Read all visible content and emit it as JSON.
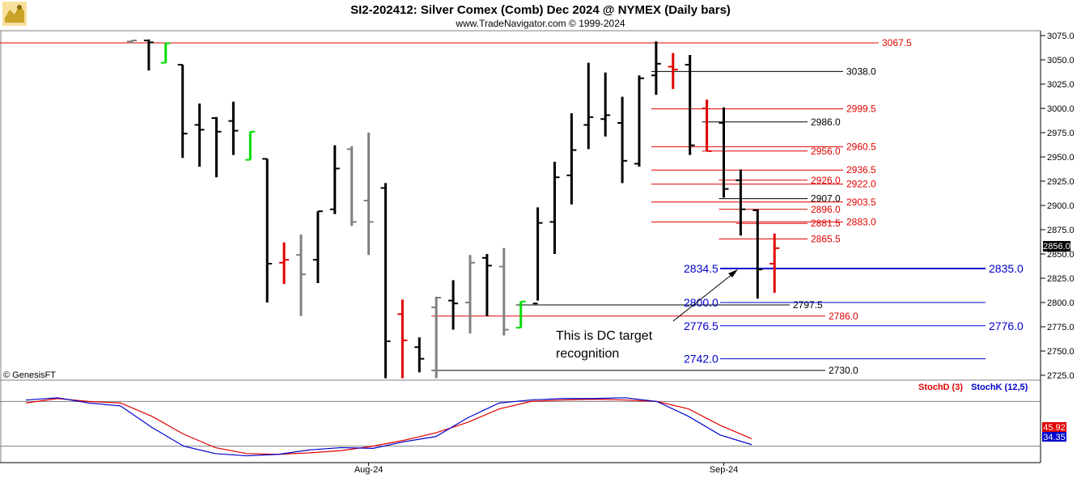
{
  "header": {
    "title": "SI2-202412:  Silver Comex (Comb) Dec 2024 @ NYMEX  (Daily bars)",
    "subtitle": "www.TradeNavigator.com © 1999-2024"
  },
  "logo_icon": "trading-bull-icon",
  "watermark": "© GenesisFT",
  "price_badge": "2856.0",
  "annotation": [
    "This is DC target",
    "recognition"
  ],
  "colors": {
    "up": "#000000",
    "gray": "#808080",
    "red": "#e00000",
    "green": "#00dd00",
    "blue": "#0000cc",
    "stochD": "#e00000",
    "stochK": "#0000cc"
  },
  "chart_data": [
    {
      "type": "ohlc",
      "title": "SI2-202412:  Silver Comex (Comb) Dec 2024 @ NYMEX  (Daily bars)",
      "ylim": [
        2720,
        3080
      ],
      "yticks": [
        "3075.0",
        "3050.0",
        "3025.0",
        "3000.0",
        "2975.0",
        "2950.0",
        "2925.0",
        "2900.0",
        "2875.0",
        "2850.0",
        "2825.0",
        "2800.0",
        "2775.0",
        "2750.0",
        "2725.0"
      ],
      "xticks": [
        {
          "label": "Aug-24",
          "bar": 14
        },
        {
          "label": "Sep-24",
          "bar": 35
        }
      ],
      "bars": [
        {
          "x": 0,
          "h": 3070,
          "l": 3067,
          "o": 3069,
          "c": 3070,
          "col": "gray"
        },
        {
          "x": 1,
          "h": 3071,
          "l": 3039,
          "o": 3070,
          "c": 3068,
          "col": "black"
        },
        {
          "x": 2,
          "h": 3067,
          "l": 3047,
          "o": 3047,
          "c": 3067,
          "col": "green"
        },
        {
          "x": 3,
          "h": 3045,
          "l": 2949,
          "o": 3045,
          "c": 2974,
          "col": "black"
        },
        {
          "x": 4,
          "h": 3005,
          "l": 2940,
          "o": 2983,
          "c": 2978,
          "col": "black"
        },
        {
          "x": 5,
          "h": 2991,
          "l": 2929,
          "o": 2990,
          "c": 2976,
          "col": "black"
        },
        {
          "x": 6,
          "h": 3007,
          "l": 2952,
          "o": 2987,
          "c": 2977,
          "col": "black"
        },
        {
          "x": 7,
          "h": 2976,
          "l": 2947,
          "o": 2947,
          "c": 2976,
          "col": "green"
        },
        {
          "x": 8,
          "h": 2948,
          "l": 2800,
          "o": 2948,
          "c": 2840,
          "col": "black"
        },
        {
          "x": 9,
          "h": 2862,
          "l": 2819,
          "o": 2841,
          "c": 2844,
          "col": "red"
        },
        {
          "x": 10,
          "h": 2870,
          "l": 2786,
          "o": 2849,
          "c": 2829,
          "col": "gray"
        },
        {
          "x": 11,
          "h": 2894,
          "l": 2820,
          "o": 2844,
          "c": 2894,
          "col": "black"
        },
        {
          "x": 12,
          "h": 2962,
          "l": 2891,
          "o": 2896,
          "c": 2938,
          "col": "black"
        },
        {
          "x": 13,
          "h": 2961,
          "l": 2879,
          "o": 2958,
          "c": 2883,
          "col": "gray"
        },
        {
          "x": 14,
          "h": 2975,
          "l": 2849,
          "o": 2905,
          "c": 2883,
          "col": "gray"
        },
        {
          "x": 15,
          "h": 2923,
          "l": 2722,
          "o": 2918,
          "c": 2760,
          "col": "black"
        },
        {
          "x": 16,
          "h": 2803,
          "l": 2722,
          "o": 2788,
          "c": 2761,
          "col": "red"
        },
        {
          "x": 17,
          "h": 2764,
          "l": 2728,
          "o": 2754,
          "c": 2742,
          "col": "black"
        },
        {
          "x": 18,
          "h": 2806,
          "l": 2722,
          "o": 2795,
          "c": 2805,
          "col": "gray"
        },
        {
          "x": 19,
          "h": 2823,
          "l": 2772,
          "o": 2802,
          "c": 2799,
          "col": "black"
        },
        {
          "x": 20,
          "h": 2849,
          "l": 2768,
          "o": 2800,
          "c": 2841,
          "col": "gray"
        },
        {
          "x": 21,
          "h": 2850,
          "l": 2786,
          "o": 2846,
          "c": 2838,
          "col": "black"
        },
        {
          "x": 22,
          "h": 2856,
          "l": 2766,
          "o": 2837,
          "c": 2772,
          "col": "gray"
        },
        {
          "x": 23,
          "h": 2801,
          "l": 2774,
          "o": 2774,
          "c": 2801,
          "col": "green"
        },
        {
          "x": 24,
          "h": 2898,
          "l": 2802,
          "o": 2799,
          "c": 2882,
          "col": "black"
        },
        {
          "x": 25,
          "h": 2945,
          "l": 2850,
          "o": 2883,
          "c": 2929,
          "col": "black"
        },
        {
          "x": 26,
          "h": 2995,
          "l": 2901,
          "o": 2931,
          "c": 2957,
          "col": "black"
        },
        {
          "x": 27,
          "h": 3047,
          "l": 2958,
          "o": 2983,
          "c": 2991,
          "col": "black"
        },
        {
          "x": 28,
          "h": 3037,
          "l": 2971,
          "o": 2989,
          "c": 2993,
          "col": "black"
        },
        {
          "x": 29,
          "h": 3012,
          "l": 2923,
          "o": 2985,
          "c": 2946,
          "col": "black"
        },
        {
          "x": 30,
          "h": 3034,
          "l": 2940,
          "o": 2943,
          "c": 3031,
          "col": "black"
        },
        {
          "x": 31,
          "h": 3069,
          "l": 3014,
          "o": 3034,
          "c": 3046,
          "col": "black"
        },
        {
          "x": 32,
          "h": 3057,
          "l": 3020,
          "o": 3043,
          "c": 3040,
          "col": "red"
        },
        {
          "x": 33,
          "h": 3055,
          "l": 2952,
          "o": 3045,
          "c": 2962,
          "col": "black"
        },
        {
          "x": 34,
          "h": 3009,
          "l": 2956,
          "o": 3000,
          "c": 2956,
          "col": "red"
        },
        {
          "x": 35,
          "h": 3001,
          "l": 2908,
          "o": 2985,
          "c": 2917,
          "col": "black"
        },
        {
          "x": 36,
          "h": 2937,
          "l": 2869,
          "o": 2926,
          "c": 2896,
          "col": "black"
        },
        {
          "x": 37,
          "h": 2896,
          "l": 2804,
          "o": 2895,
          "c": 2834,
          "col": "black"
        },
        {
          "x": 38,
          "h": 2871,
          "l": 2810,
          "o": 2840,
          "c": 2856,
          "col": "red"
        }
      ],
      "levels": [
        {
          "value": 3067.5,
          "label": "3067.5",
          "color": "red",
          "from": 0,
          "size": "small"
        },
        {
          "value": 3038.0,
          "label": "3038.0",
          "color": "black",
          "from": 31,
          "size": "small"
        },
        {
          "value": 2999.5,
          "label": "2999.5",
          "color": "red",
          "from": 31,
          "size": "small"
        },
        {
          "value": 2986.0,
          "label": "2986.0",
          "color": "black",
          "from": 34,
          "size": "small"
        },
        {
          "value": 2960.5,
          "label": "2960.5",
          "color": "red",
          "from": 31,
          "size": "small"
        },
        {
          "value": 2956.0,
          "label": "2956.0",
          "color": "red",
          "from": 34,
          "size": "small"
        },
        {
          "value": 2936.5,
          "label": "2936.5",
          "color": "red",
          "from": 31,
          "size": "small"
        },
        {
          "value": 2926.0,
          "label": "2926.0",
          "color": "red",
          "from": 35,
          "size": "small"
        },
        {
          "value": 2922.0,
          "label": "2922.0",
          "color": "red",
          "from": 31,
          "size": "small"
        },
        {
          "value": 2907.0,
          "label": "2907.0",
          "color": "black",
          "from": 35,
          "size": "small"
        },
        {
          "value": 2903.5,
          "label": "2903.5",
          "color": "red",
          "from": 31,
          "size": "small"
        },
        {
          "value": 2896.0,
          "label": "2896.0",
          "color": "red",
          "from": 35,
          "size": "small"
        },
        {
          "value": 2883.0,
          "label": "2883.0",
          "color": "red",
          "from": 31,
          "size": "small"
        },
        {
          "value": 2881.5,
          "label": "2881.5",
          "color": "red",
          "from": 36,
          "size": "small"
        },
        {
          "value": 2865.5,
          "label": "2865.5",
          "color": "red",
          "from": 35,
          "size": "small"
        },
        {
          "value": 2797.5,
          "label": "2797.5",
          "color": "black",
          "from": 23,
          "size": "small"
        },
        {
          "value": 2786.0,
          "label": "2786.0",
          "color": "red",
          "from": 18,
          "size": "small"
        },
        {
          "value": 2730.0,
          "label": "2730.0",
          "color": "black",
          "from": 18,
          "size": "small"
        }
      ],
      "target_levels": [
        {
          "value": 2835.0,
          "label": "2834.5",
          "right_label": "2835.0",
          "color": "blue",
          "bold": true
        },
        {
          "value": 2800.0,
          "label": "2800.0",
          "right_label": "",
          "color": "blue"
        },
        {
          "value": 2776.0,
          "label": "2776.5",
          "right_label": "2776.0",
          "color": "blue"
        },
        {
          "value": 2742.0,
          "label": "2742.0",
          "right_label": "",
          "color": "blue"
        }
      ]
    },
    {
      "type": "line",
      "title": "",
      "ylim": [
        0,
        100
      ],
      "series": [
        {
          "name": "StochD (3)",
          "color": "#e00000",
          "values": [
            [
              0,
              78
            ],
            [
              2,
              84
            ],
            [
              4,
              80
            ],
            [
              6,
              78
            ],
            [
              8,
              60
            ],
            [
              10,
              36
            ],
            [
              12,
              18
            ],
            [
              14,
              10
            ],
            [
              16,
              9
            ],
            [
              18,
              11
            ],
            [
              20,
              14
            ],
            [
              22,
              20
            ],
            [
              24,
              28
            ],
            [
              26,
              38
            ],
            [
              28,
              52
            ],
            [
              30,
              70
            ],
            [
              32,
              80
            ],
            [
              34,
              82
            ],
            [
              36,
              83
            ],
            [
              38,
              82
            ],
            [
              40,
              80
            ],
            [
              42,
              70
            ],
            [
              44,
              48
            ],
            [
              46,
              30
            ]
          ]
        },
        {
          "name": "StochK (12,5)",
          "color": "#0000cc",
          "values": [
            [
              0,
              82
            ],
            [
              2,
              85
            ],
            [
              4,
              78
            ],
            [
              6,
              74
            ],
            [
              8,
              45
            ],
            [
              10,
              20
            ],
            [
              12,
              10
            ],
            [
              14,
              7
            ],
            [
              16,
              9
            ],
            [
              18,
              15
            ],
            [
              20,
              18
            ],
            [
              22,
              17
            ],
            [
              24,
              26
            ],
            [
              26,
              33
            ],
            [
              28,
              58
            ],
            [
              30,
              78
            ],
            [
              32,
              82
            ],
            [
              34,
              84
            ],
            [
              36,
              84
            ],
            [
              38,
              85
            ],
            [
              40,
              80
            ],
            [
              42,
              60
            ],
            [
              44,
              35
            ],
            [
              46,
              22
            ]
          ]
        }
      ],
      "hlines": [
        80,
        20
      ],
      "readouts": [
        "45.92",
        "34.35"
      ]
    }
  ]
}
